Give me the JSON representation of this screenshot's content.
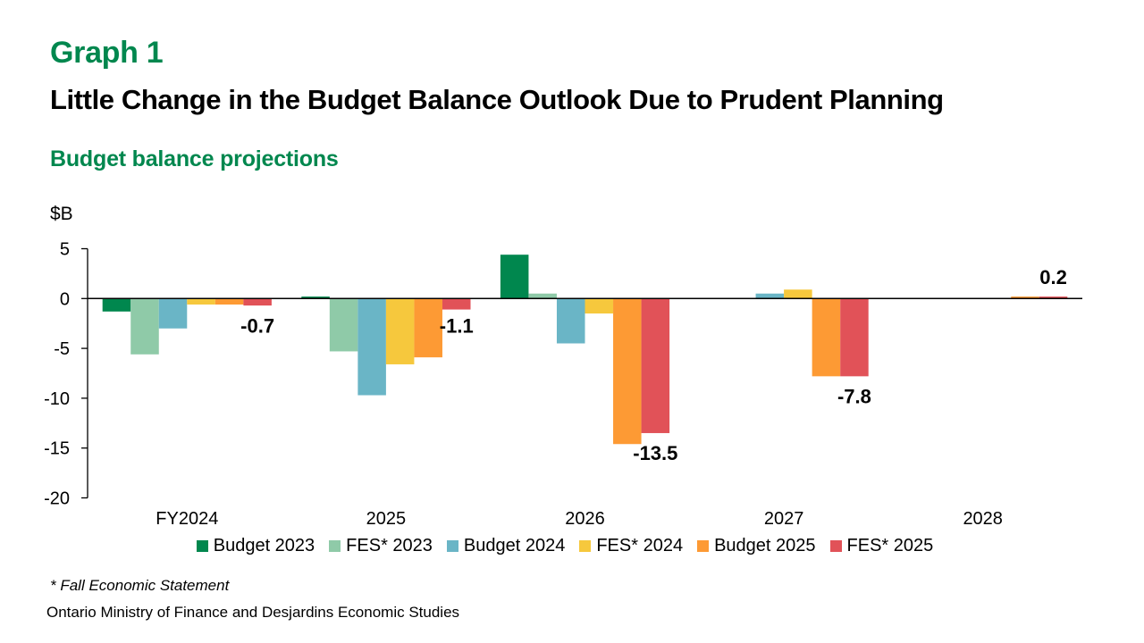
{
  "header": {
    "graph_label": "Graph 1",
    "title": "Little Change in the Budget Balance Outlook Due to Prudent Planning",
    "subtitle": "Budget balance projections",
    "unit_label": "$B"
  },
  "footer": {
    "footnote": "* Fall Economic Statement",
    "source": "Ontario Ministry of Finance and Desjardins Economic Studies"
  },
  "chart_data": {
    "type": "bar",
    "title": "Little Change in the Budget Balance Outlook Due to Prudent Planning",
    "subtitle": "Budget balance projections",
    "xlabel": "",
    "ylabel": "$B",
    "ylim": [
      -20,
      5
    ],
    "yticks": [
      5,
      0,
      -5,
      -10,
      -15,
      -20
    ],
    "grid": false,
    "legend_position": "bottom",
    "categories": [
      "FY2024",
      "2025",
      "2026",
      "2027",
      "2028"
    ],
    "series": [
      {
        "name": "Budget 2023",
        "color": "#00874e",
        "values": [
          -1.3,
          0.2,
          4.4,
          null,
          null
        ]
      },
      {
        "name": "FES* 2023",
        "color": "#8fcaa8",
        "values": [
          -5.6,
          -5.3,
          0.5,
          null,
          null
        ]
      },
      {
        "name": "Budget 2024",
        "color": "#6ab5c6",
        "values": [
          -3.0,
          -9.7,
          -4.5,
          0.5,
          null
        ]
      },
      {
        "name": "FES* 2024",
        "color": "#f6c83d",
        "values": [
          -0.6,
          -6.6,
          -1.5,
          0.9,
          null
        ]
      },
      {
        "name": "Budget 2025",
        "color": "#fd9a34",
        "values": [
          -0.6,
          -5.9,
          -14.6,
          -7.8,
          0.2
        ]
      },
      {
        "name": "FES* 2025",
        "color": "#e15258",
        "values": [
          -0.7,
          -1.1,
          -13.5,
          -7.8,
          0.2
        ]
      }
    ],
    "data_labels": [
      {
        "series": "FES* 2025",
        "category": "FY2024",
        "text": "-0.7"
      },
      {
        "series": "FES* 2025",
        "category": "2025",
        "text": "-1.1"
      },
      {
        "series": "FES* 2025",
        "category": "2026",
        "text": "-13.5"
      },
      {
        "series": "FES* 2025",
        "category": "2027",
        "text": "-7.8"
      },
      {
        "series": "FES* 2025",
        "category": "2028",
        "text": "0.2"
      }
    ]
  }
}
